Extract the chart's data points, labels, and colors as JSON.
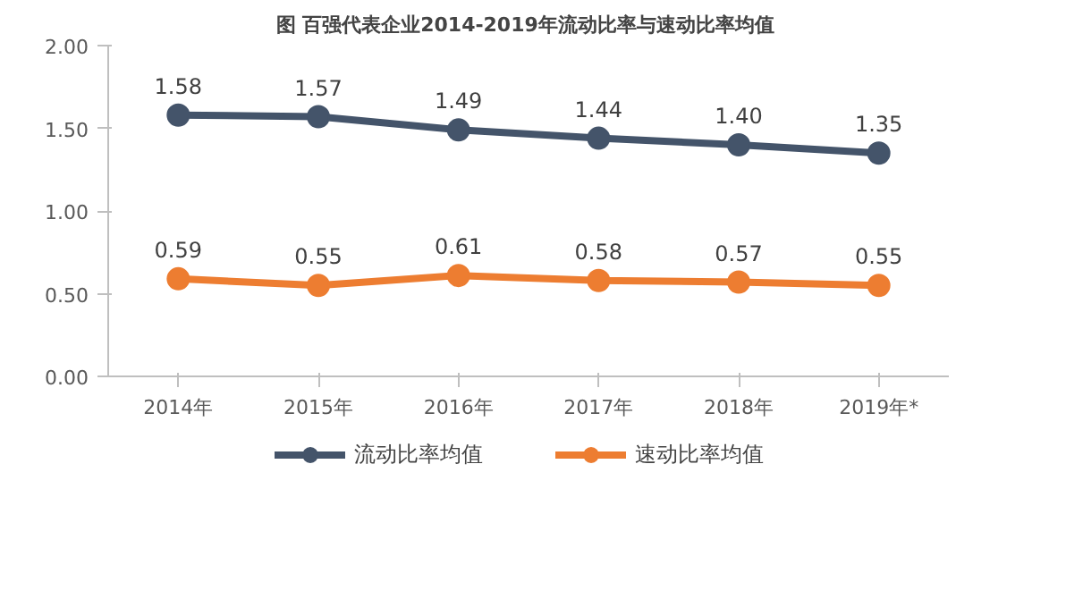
{
  "chart_data": {
    "type": "line",
    "title": "图  百强代表企业2014-2019年流动比率与速动比率均值",
    "categories": [
      "2014年",
      "2015年",
      "2016年",
      "2017年",
      "2018年",
      "2019年*"
    ],
    "series": [
      {
        "name": "流动比率均值",
        "color": "#44546a",
        "values": [
          1.58,
          1.57,
          1.49,
          1.44,
          1.4,
          1.35
        ],
        "value_labels": [
          "1.58",
          "1.57",
          "1.49",
          "1.44",
          "1.40",
          "1.35"
        ]
      },
      {
        "name": "速动比率均值",
        "color": "#ed7d31",
        "values": [
          0.59,
          0.55,
          0.61,
          0.58,
          0.57,
          0.55
        ],
        "value_labels": [
          "0.59",
          "0.55",
          "0.61",
          "0.58",
          "0.57",
          "0.55"
        ]
      }
    ],
    "ylim": [
      0,
      2
    ],
    "yticks": [
      {
        "value": 0,
        "label": "0.00"
      },
      {
        "value": 0.5,
        "label": "0.50"
      },
      {
        "value": 1,
        "label": "1.00"
      },
      {
        "value": 1.5,
        "label": "1.50"
      },
      {
        "value": 2,
        "label": "2.00"
      }
    ],
    "grid": false,
    "legend": "bottom",
    "marker": "circle",
    "line_style": "solid"
  }
}
